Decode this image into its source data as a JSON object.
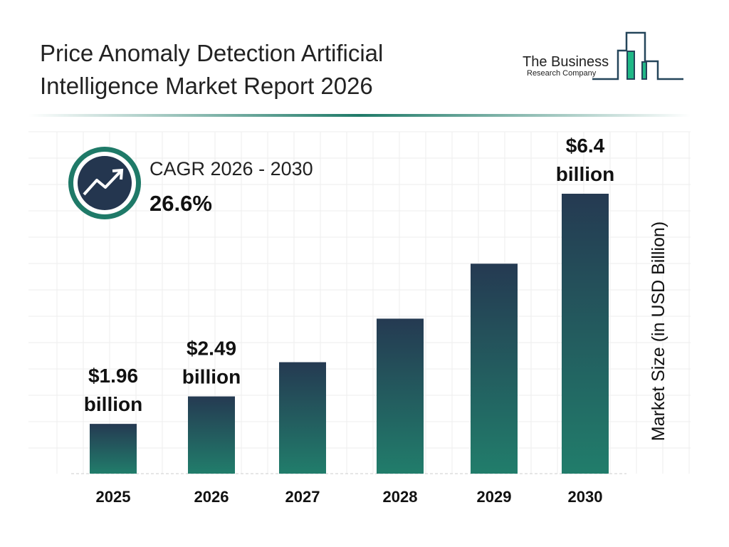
{
  "header": {
    "title_line1": "Price Anomaly Detection Artificial",
    "title_line2": "Intelligence Market Report 2026"
  },
  "logo": {
    "line1": "The Business",
    "line2": "Research Company"
  },
  "cagr": {
    "label": "CAGR 2026 - 2030",
    "value": "26.6%",
    "icon": "trending-up-icon"
  },
  "colors": {
    "bar_top": "#253a52",
    "bar_bottom": "#217d6b",
    "accent": "#1f7a68"
  },
  "chart_data": {
    "type": "bar",
    "categories": [
      "2025",
      "2026",
      "2027",
      "2028",
      "2029",
      "2030"
    ],
    "values": [
      1.96,
      2.49,
      3.15,
      3.99,
      5.05,
      6.4
    ],
    "data_labels": [
      [
        "$1.96",
        "billion"
      ],
      [
        "$2.49",
        "billion"
      ],
      null,
      null,
      null,
      [
        "$6.4",
        "billion"
      ]
    ],
    "ylabel": "Market Size (in USD Billion)",
    "grid": true
  }
}
